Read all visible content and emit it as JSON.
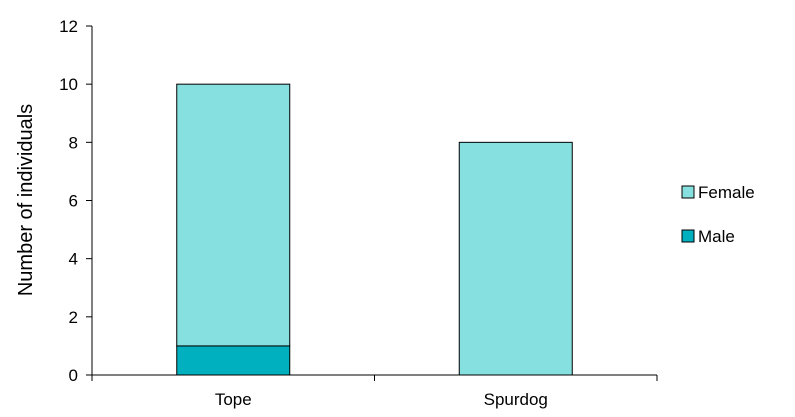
{
  "chart_data": {
    "type": "bar",
    "stacked": true,
    "categories": [
      "Tope",
      "Spurdog"
    ],
    "series": [
      {
        "name": "Male",
        "values": [
          1,
          0
        ],
        "color": "#00b0be"
      },
      {
        "name": "Female",
        "values": [
          9,
          8
        ],
        "color": "#86e0e0"
      }
    ],
    "xlabel": "",
    "ylabel": "Number of individuals",
    "ylim": [
      0,
      12
    ],
    "yticks": [
      0,
      2,
      4,
      6,
      8,
      10,
      12
    ],
    "grid": false,
    "legend": {
      "placement": "right",
      "entries": [
        "Female",
        "Male"
      ]
    }
  }
}
